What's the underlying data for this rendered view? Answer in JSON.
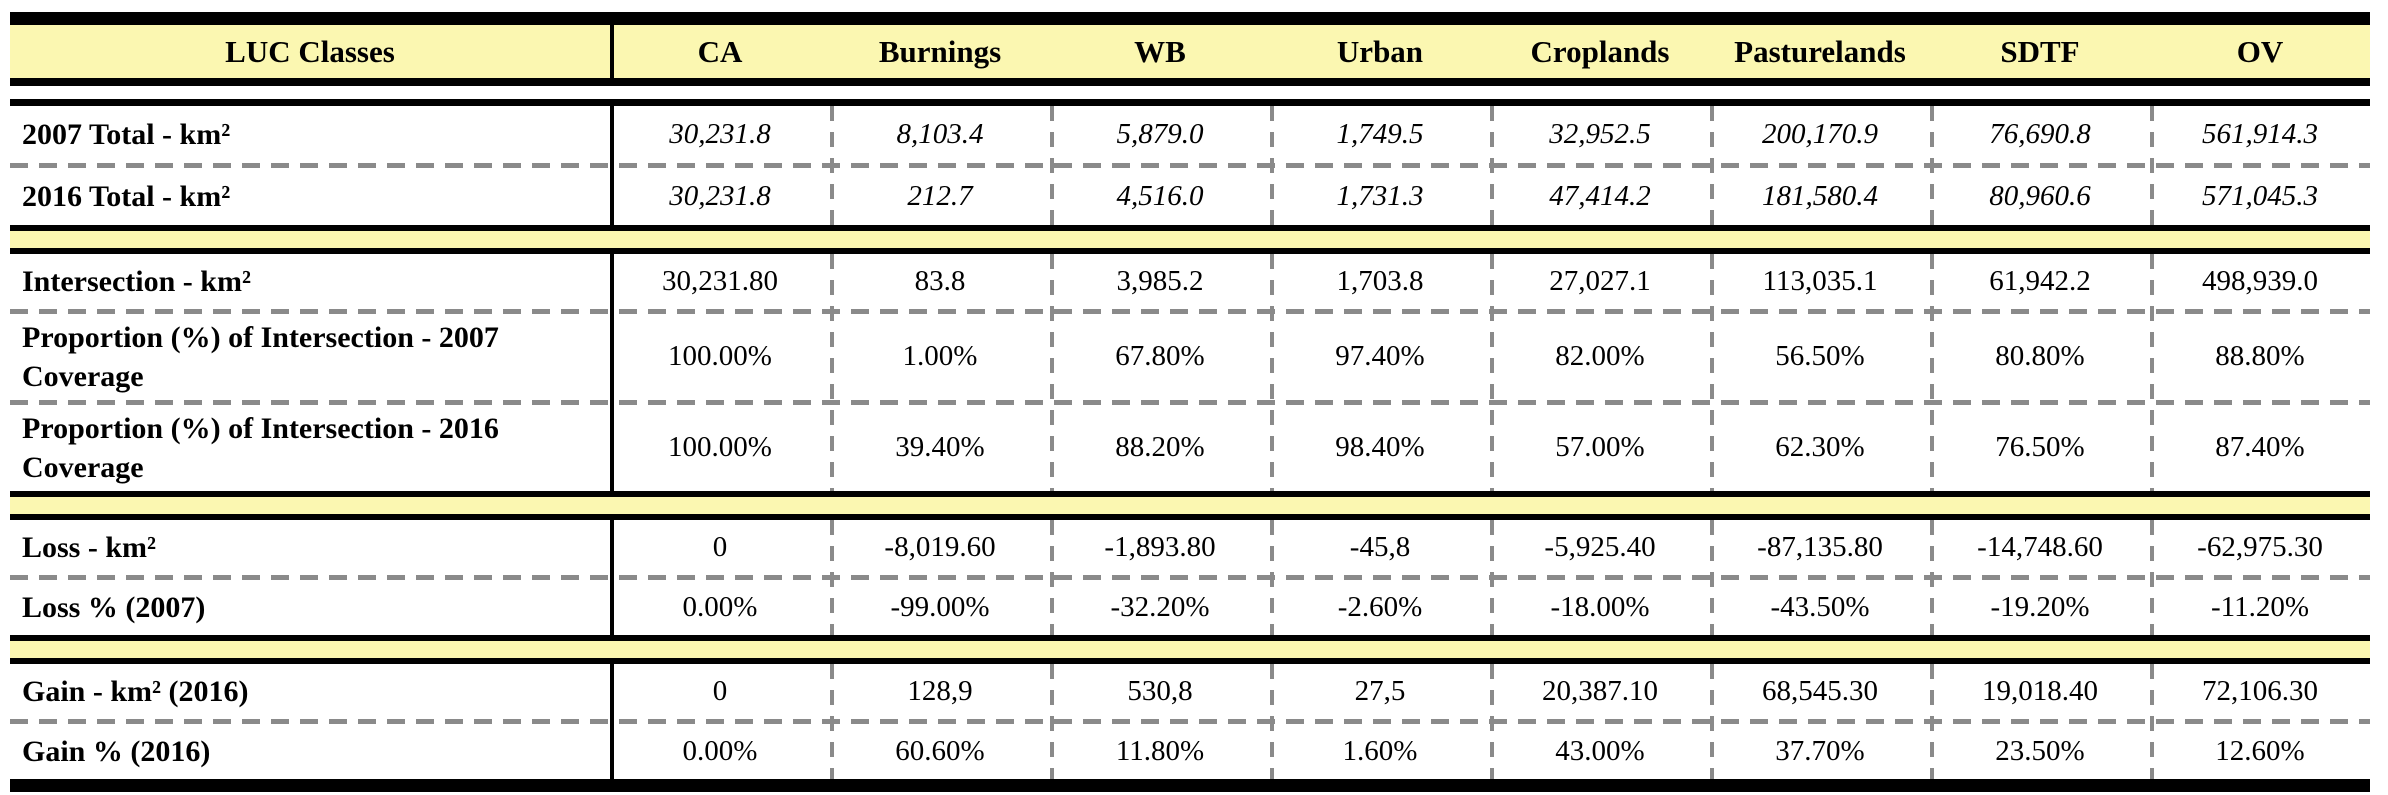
{
  "colors": {
    "header_yellow": "#FBF7B1",
    "band_yellow": "#FBF7B1",
    "rule_black": "#000000",
    "dash_gray": "#8A8A8A"
  },
  "table": {
    "header": {
      "label_col": "LUC Classes",
      "columns": [
        "CA",
        "Burnings",
        "WB",
        "Urban",
        "Croplands",
        "Pasturelands",
        "SDTF",
        "OV"
      ]
    },
    "sections": [
      {
        "name": "totals",
        "rows": [
          {
            "label": "2007 Total - km²",
            "values": [
              "30,231.8",
              "8,103.4",
              "5,879.0",
              "1,749.5",
              "32,952.5",
              "200,170.9",
              "76,690.8",
              "561,914.3"
            ]
          },
          {
            "label": "2016 Total - km²",
            "values": [
              "30,231.8",
              "212.7",
              "4,516.0",
              "1,731.3",
              "47,414.2",
              "181,580.4",
              "80,960.6",
              "571,045.3"
            ]
          }
        ]
      },
      {
        "name": "intersection",
        "rows": [
          {
            "label": "Intersection - km²",
            "values": [
              "30,231.80",
              "83.8",
              "3,985.2",
              "1,703.8",
              "27,027.1",
              "113,035.1",
              "61,942.2",
              "498,939.0"
            ]
          },
          {
            "label": "Proportion (%) of Intersection - 2007 Coverage",
            "values": [
              "100.00%",
              "1.00%",
              "67.80%",
              "97.40%",
              "82.00%",
              "56.50%",
              "80.80%",
              "88.80%"
            ]
          },
          {
            "label": "Proportion (%) of Intersection - 2016 Coverage",
            "values": [
              "100.00%",
              "39.40%",
              "88.20%",
              "98.40%",
              "57.00%",
              "62.30%",
              "76.50%",
              "87.40%"
            ]
          }
        ]
      },
      {
        "name": "loss",
        "rows": [
          {
            "label": "Loss - km²",
            "values": [
              "0",
              "-8,019.60",
              "-1,893.80",
              "-45,8",
              "-5,925.40",
              "-87,135.80",
              "-14,748.60",
              "-62,975.30"
            ]
          },
          {
            "label": "Loss % (2007)",
            "values": [
              "0.00%",
              "-99.00%",
              "-32.20%",
              "-2.60%",
              "-18.00%",
              "-43.50%",
              "-19.20%",
              "-11.20%"
            ]
          }
        ]
      },
      {
        "name": "gain",
        "rows": [
          {
            "label": "Gain - km² (2016)",
            "values": [
              "0",
              "128,9",
              "530,8",
              "27,5",
              "20,387.10",
              "68,545.30",
              "19,018.40",
              "72,106.30"
            ]
          },
          {
            "label": "Gain % (2016)",
            "values": [
              "0.00%",
              "60.60%",
              "11.80%",
              "1.60%",
              "43.00%",
              "37.70%",
              "23.50%",
              "12.60%"
            ]
          }
        ]
      }
    ]
  }
}
